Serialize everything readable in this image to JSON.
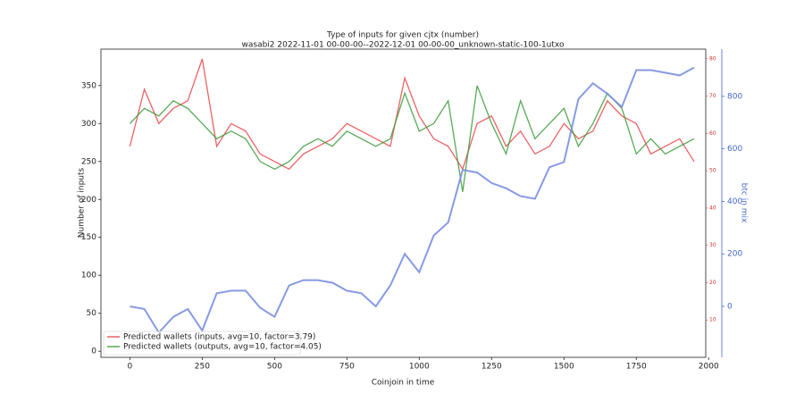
{
  "chart_data": {
    "type": "line",
    "title": "Type of inputs for given cjtx (number)",
    "subtitle": "wasabi2 2022-11-01 00-00-00--2022-12-01 00-00-00_unknown-static-100-1utxo",
    "xlabel": "Coinjoin in time",
    "ylabel": "Number of inputs",
    "y2label": "btc in mix",
    "x": [
      0,
      50,
      100,
      150,
      200,
      250,
      300,
      350,
      400,
      450,
      500,
      550,
      600,
      650,
      700,
      750,
      800,
      850,
      900,
      950,
      1000,
      1050,
      1100,
      1150,
      1200,
      1250,
      1300,
      1350,
      1400,
      1450,
      1500,
      1550,
      1600,
      1650,
      1700,
      1750,
      1800,
      1850,
      1900,
      1950
    ],
    "series": [
      {
        "name": "Predicted wallets (inputs, avg=10, factor=3.79)",
        "color": "#e8474a",
        "values": [
          270,
          345,
          300,
          320,
          330,
          385,
          270,
          300,
          290,
          260,
          250,
          240,
          260,
          270,
          280,
          300,
          290,
          280,
          270,
          360,
          310,
          280,
          270,
          240,
          300,
          310,
          270,
          290,
          260,
          270,
          300,
          280,
          290,
          330,
          310,
          300,
          260,
          270,
          280,
          250
        ]
      },
      {
        "name": "Predicted wallets (outputs, avg=10, factor=4.05)",
        "color": "#3a9a3a",
        "values": [
          300,
          320,
          310,
          330,
          320,
          300,
          280,
          290,
          280,
          250,
          240,
          250,
          270,
          280,
          270,
          290,
          280,
          270,
          280,
          340,
          290,
          300,
          330,
          210,
          350,
          300,
          260,
          330,
          280,
          300,
          320,
          270,
          300,
          340,
          320,
          260,
          280,
          260,
          270,
          280
        ]
      },
      {
        "color": "#7a8fe0",
        "axis": "y2",
        "values": [
          0,
          -10,
          -100,
          -40,
          -10,
          -92,
          50,
          60,
          60,
          -5,
          -40,
          80,
          100,
          100,
          90,
          60,
          50,
          0,
          80,
          200,
          130,
          270,
          320,
          520,
          510,
          470,
          450,
          420,
          410,
          530,
          550,
          790,
          850,
          810,
          760,
          900,
          900,
          890,
          880,
          910
        ]
      }
    ],
    "xlim": [
      -100,
      1990
    ],
    "xticks": [
      0,
      250,
      500,
      750,
      1000,
      1250,
      1500,
      1750,
      2000
    ],
    "ylim": [
      -8,
      398
    ],
    "yticks": [
      0,
      50,
      100,
      150,
      200,
      250,
      300,
      350
    ],
    "y2lim": [
      -194,
      980
    ],
    "y2ticks": [
      0,
      200,
      400,
      600,
      800
    ],
    "y3lim": [
      0,
      82.6
    ],
    "y3ticks": [
      10,
      20,
      30,
      40,
      50,
      60,
      70,
      80
    ],
    "legend": "lower left",
    "grid": false
  }
}
